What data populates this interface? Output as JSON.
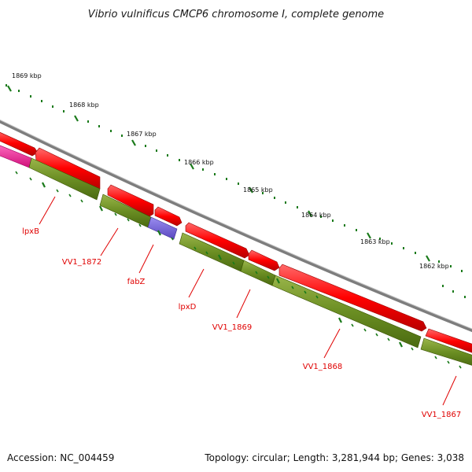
{
  "title": "Vibrio vulnificus CMCP6 chromosome I, complete genome",
  "ticks": [
    "1869 kbp",
    "1868 kbp",
    "1867 kbp",
    "1866 kbp",
    "1865 kbp",
    "1864 kbp",
    "1863 kbp",
    "1862 kbp"
  ],
  "genes": [
    "lpxB",
    "VV1_1872",
    "fabZ",
    "lpxD",
    "VV1_1869",
    "VV1_1868",
    "VV1_1867"
  ],
  "footer": {
    "accession": "Accession: NC_004459",
    "summary": "Topology: circular; Length: 3,281,944 bp; Genes: 3,038"
  },
  "colors": {
    "backbone": "#8a8a8a",
    "cds": "#ff0000",
    "gene_track": "#6b8e23",
    "fabZ": "#6a5acd",
    "leftmost_gene": "#ff1493",
    "tick": "#1a7a1a",
    "label": "#e00000"
  }
}
